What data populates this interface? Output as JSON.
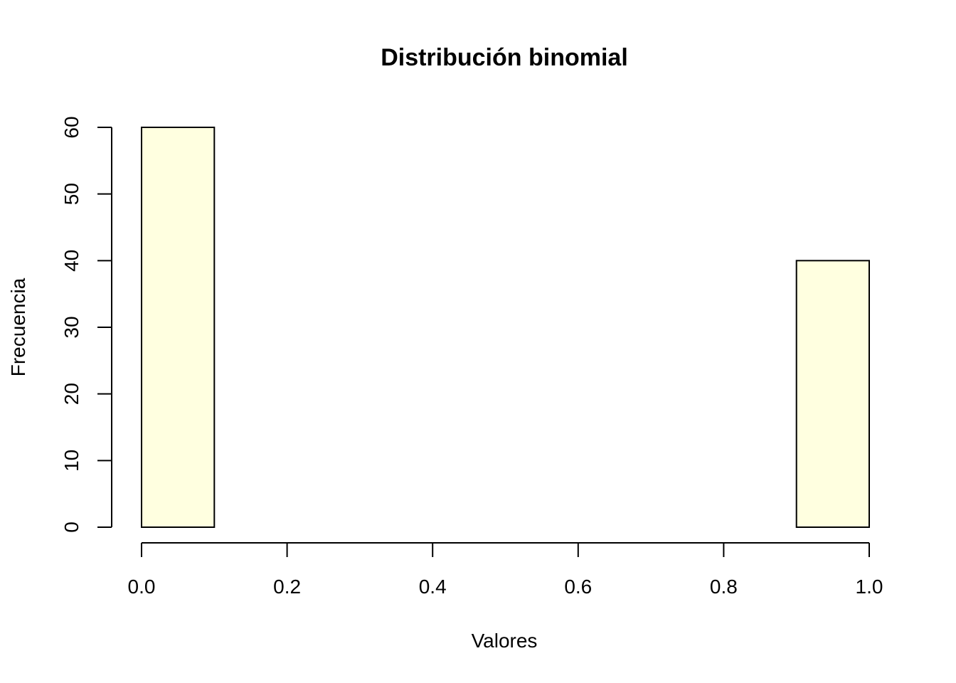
{
  "chart_data": {
    "type": "bar",
    "title": "Distribución binomial",
    "xlabel": "Valores",
    "ylabel": "Frecuencia",
    "bins": [
      {
        "from": 0.0,
        "to": 0.1,
        "count": 60
      },
      {
        "from": 0.1,
        "to": 0.2,
        "count": 0
      },
      {
        "from": 0.2,
        "to": 0.3,
        "count": 0
      },
      {
        "from": 0.3,
        "to": 0.4,
        "count": 0
      },
      {
        "from": 0.4,
        "to": 0.5,
        "count": 0
      },
      {
        "from": 0.5,
        "to": 0.6,
        "count": 0
      },
      {
        "from": 0.6,
        "to": 0.7,
        "count": 0
      },
      {
        "from": 0.7,
        "to": 0.8,
        "count": 0
      },
      {
        "from": 0.8,
        "to": 0.9,
        "count": 0
      },
      {
        "from": 0.9,
        "to": 1.0,
        "count": 40
      }
    ],
    "xlim": [
      0,
      1
    ],
    "ylim": [
      0,
      60
    ],
    "xticks": [
      "0.0",
      "0.2",
      "0.4",
      "0.6",
      "0.8",
      "1.0"
    ],
    "yticks": [
      "0",
      "10",
      "20",
      "30",
      "40",
      "50",
      "60"
    ],
    "bar_color": "#FFFFE0",
    "grid": false,
    "legend": "none"
  }
}
